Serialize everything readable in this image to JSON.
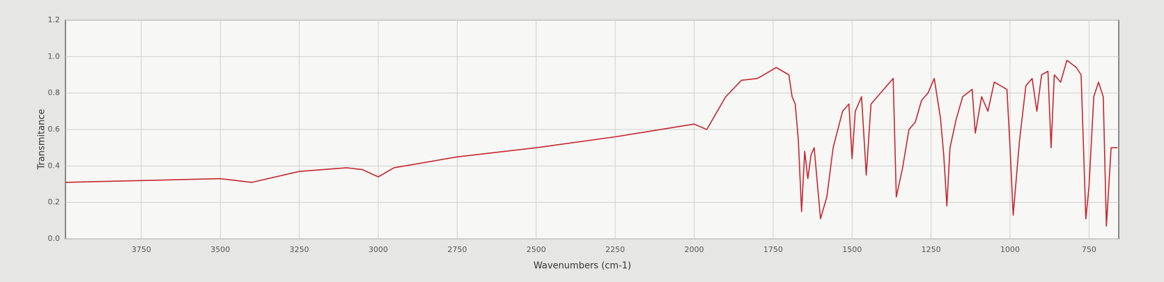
{
  "chart_data": {
    "type": "line",
    "x_label": "Wavenumbers (cm-1)",
    "y_label": "Transmitance",
    "xlim": [
      3990,
      656
    ],
    "ylim": [
      0,
      1.2
    ],
    "xticks": [
      3750,
      3500,
      3250,
      3000,
      2750,
      2500,
      2250,
      2000,
      1750,
      1500,
      1250,
      1000,
      750
    ],
    "yticks": [
      {
        "value": 0,
        "label": "0.0"
      },
      0.2,
      0.4,
      0.6,
      0.8,
      {
        "value": 1,
        "label": "1.0"
      },
      {
        "value": 1.2,
        "label": "1.2"
      }
    ],
    "grid": true,
    "series": [
      {
        "color": "#c4282e",
        "x": [
          3990,
          3750,
          3500,
          3400,
          3250,
          3100,
          3050,
          3000,
          2950,
          2750,
          2500,
          2250,
          2000,
          1960,
          1940,
          1900,
          1850,
          1800,
          1770,
          1740,
          1700,
          1690,
          1680,
          1670,
          1660,
          1650,
          1640,
          1630,
          1620,
          1600,
          1590,
          1580,
          1560,
          1530,
          1510,
          1500,
          1490,
          1470,
          1455,
          1440,
          1400,
          1370,
          1360,
          1340,
          1320,
          1300,
          1280,
          1260,
          1240,
          1220,
          1210,
          1200,
          1190,
          1170,
          1150,
          1120,
          1110,
          1090,
          1070,
          1050,
          1030,
          1010,
          1000,
          990,
          970,
          950,
          930,
          915,
          900,
          880,
          870,
          860,
          840,
          820,
          790,
          775,
          760,
          750,
          735,
          720,
          705,
          695,
          680,
          660
        ],
        "values": [
          0.31,
          0.32,
          0.33,
          0.31,
          0.37,
          0.39,
          0.38,
          0.34,
          0.39,
          0.45,
          0.5,
          0.56,
          0.63,
          0.6,
          0.66,
          0.78,
          0.87,
          0.88,
          0.91,
          0.94,
          0.9,
          0.78,
          0.74,
          0.54,
          0.15,
          0.48,
          0.33,
          0.46,
          0.5,
          0.11,
          0.17,
          0.23,
          0.5,
          0.7,
          0.74,
          0.44,
          0.7,
          0.78,
          0.35,
          0.74,
          0.82,
          0.88,
          0.23,
          0.39,
          0.6,
          0.64,
          0.76,
          0.8,
          0.88,
          0.66,
          0.46,
          0.18,
          0.5,
          0.66,
          0.78,
          0.82,
          0.58,
          0.78,
          0.7,
          0.86,
          0.84,
          0.82,
          0.5,
          0.13,
          0.54,
          0.84,
          0.88,
          0.7,
          0.9,
          0.92,
          0.5,
          0.9,
          0.86,
          0.98,
          0.94,
          0.9,
          0.11,
          0.29,
          0.78,
          0.86,
          0.78,
          0.07,
          0.5,
          0.5
        ]
      }
    ]
  }
}
